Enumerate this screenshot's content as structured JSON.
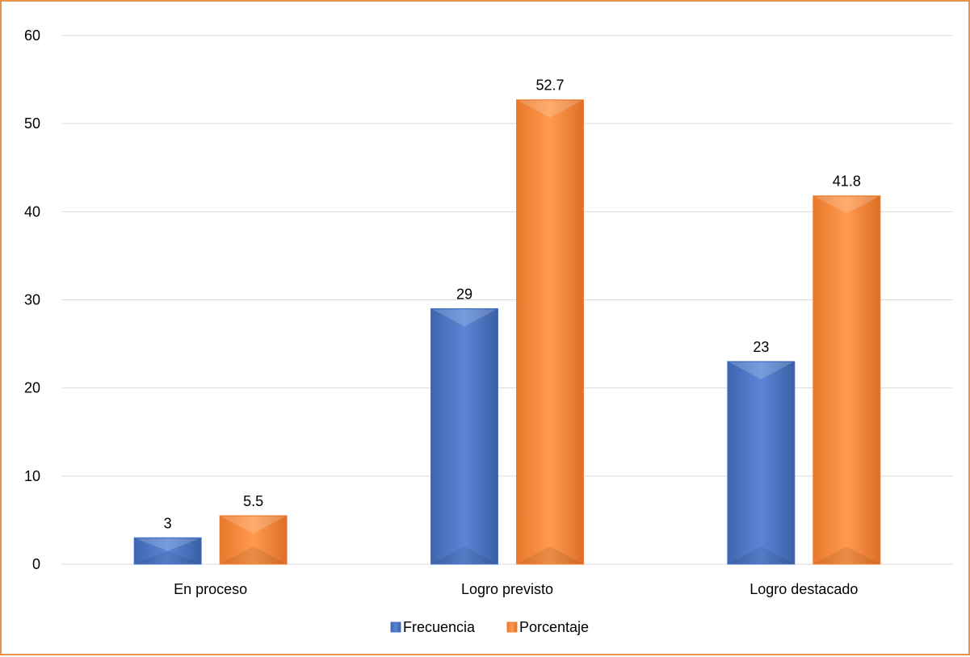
{
  "chart_data": {
    "type": "bar",
    "categories": [
      "En proceso",
      "Logro previsto",
      "Logro destacado"
    ],
    "series": [
      {
        "name": "Frecuencia",
        "values": [
          3,
          29,
          23
        ],
        "labels": [
          "3",
          "29",
          "23"
        ]
      },
      {
        "name": "Porcentaje",
        "values": [
          5.5,
          52.7,
          41.8
        ],
        "labels": [
          "5.5",
          "52.7",
          "41.8"
        ]
      }
    ],
    "yticks": [
      "0",
      "10",
      "20",
      "30",
      "40",
      "50",
      "60"
    ],
    "ylim": [
      0,
      60
    ],
    "grid": true,
    "legend_position": "bottom",
    "colors": {
      "Frecuencia": "#4472C4",
      "Porcentaje": "#ED7D31",
      "border": "#E8914A",
      "grid": "#D9D9D9"
    }
  }
}
